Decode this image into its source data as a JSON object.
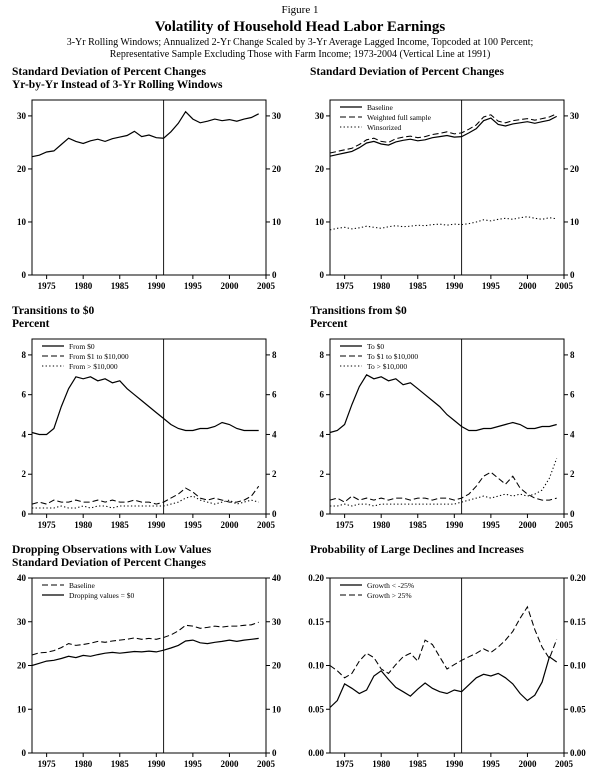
{
  "header": {
    "figure_label": "Figure 1",
    "title": "Volatility of Household Head Labor Earnings",
    "subtitle1": "3-Yr Rolling Windows; Annualized 2-Yr Change Scaled by 3-Yr Average Lagged Income, Topcoded at 100 Percent;",
    "subtitle2": "Representative Sample Excluding Those with Farm Income; 1973-2004 (Vertical Line at 1991)"
  },
  "chart_data": [
    {
      "type": "line",
      "title_lines": [
        "Standard Deviation of Percent Changes",
        "Yr-by-Yr Instead of 3-Yr Rolling Windows"
      ],
      "x": [
        1973,
        1974,
        1975,
        1976,
        1977,
        1978,
        1979,
        1980,
        1981,
        1982,
        1983,
        1984,
        1985,
        1986,
        1987,
        1988,
        1989,
        1990,
        1991,
        1992,
        1993,
        1994,
        1995,
        1996,
        1997,
        1998,
        1999,
        2000,
        2001,
        2002,
        2003,
        2004
      ],
      "xlim": [
        1973,
        2005
      ],
      "ylim": [
        0,
        33
      ],
      "xticks": [
        1975,
        1980,
        1985,
        1990,
        1995,
        2000,
        2005
      ],
      "ytick_values": [
        0,
        10,
        20,
        30
      ],
      "ytick_labels": [
        "0",
        "10",
        "20",
        "30"
      ],
      "vline": 1991,
      "series": [
        {
          "name": "",
          "style": "solid",
          "values": [
            22.3,
            22.6,
            23.2,
            23.4,
            24.6,
            25.8,
            25.2,
            24.8,
            25.3,
            25.6,
            25.2,
            25.7,
            26.0,
            26.3,
            27.1,
            26.1,
            26.4,
            25.9,
            25.8,
            27.0,
            28.6,
            30.8,
            29.4,
            28.7,
            29.0,
            29.4,
            29.1,
            29.3,
            29.0,
            29.4,
            29.7,
            30.4
          ]
        }
      ]
    },
    {
      "type": "line",
      "title_lines": [
        "Standard Deviation of Percent Changes"
      ],
      "x": [
        1973,
        1974,
        1975,
        1976,
        1977,
        1978,
        1979,
        1980,
        1981,
        1982,
        1983,
        1984,
        1985,
        1986,
        1987,
        1988,
        1989,
        1990,
        1991,
        1992,
        1993,
        1994,
        1995,
        1996,
        1997,
        1998,
        1999,
        2000,
        2001,
        2002,
        2003,
        2004
      ],
      "xlim": [
        1973,
        2005
      ],
      "ylim": [
        0,
        33
      ],
      "xticks": [
        1975,
        1980,
        1985,
        1990,
        1995,
        2000,
        2005
      ],
      "ytick_values": [
        0,
        10,
        20,
        30
      ],
      "ytick_labels": [
        "0",
        "10",
        "20",
        "30"
      ],
      "vline": 1991,
      "series": [
        {
          "name": "Baseline",
          "style": "solid",
          "values": [
            22.4,
            22.7,
            23.0,
            23.3,
            24.0,
            24.9,
            25.2,
            24.7,
            24.5,
            25.1,
            25.4,
            25.6,
            25.3,
            25.5,
            25.9,
            26.1,
            26.3,
            26.0,
            26.1,
            26.8,
            27.6,
            29.1,
            29.6,
            28.4,
            28.1,
            28.5,
            28.7,
            28.9,
            28.6,
            28.9,
            29.2,
            29.9
          ]
        },
        {
          "name": "Weighted full sample",
          "style": "dashed",
          "values": [
            23.0,
            23.3,
            23.6,
            23.9,
            24.6,
            25.5,
            25.8,
            25.2,
            25.0,
            25.7,
            26.0,
            26.2,
            25.9,
            26.1,
            26.5,
            26.7,
            27.0,
            26.6,
            26.8,
            27.5,
            28.3,
            29.8,
            30.2,
            29.0,
            28.7,
            29.1,
            29.3,
            29.5,
            29.2,
            29.5,
            29.8,
            30.4
          ]
        },
        {
          "name": "Winsorized",
          "style": "dotted",
          "values": [
            8.5,
            8.8,
            9.0,
            8.7,
            8.9,
            9.2,
            9.0,
            8.8,
            9.1,
            9.3,
            9.1,
            9.2,
            9.4,
            9.3,
            9.5,
            9.6,
            9.4,
            9.6,
            9.5,
            9.7,
            10.0,
            10.4,
            10.2,
            10.5,
            10.7,
            10.5,
            10.8,
            11.0,
            10.7,
            10.5,
            10.8,
            10.6
          ]
        }
      ]
    },
    {
      "type": "line",
      "title_lines": [
        "Transitions to $0",
        "Percent"
      ],
      "x": [
        1973,
        1974,
        1975,
        1976,
        1977,
        1978,
        1979,
        1980,
        1981,
        1982,
        1983,
        1984,
        1985,
        1986,
        1987,
        1988,
        1989,
        1990,
        1991,
        1992,
        1993,
        1994,
        1995,
        1996,
        1997,
        1998,
        1999,
        2000,
        2001,
        2002,
        2003,
        2004
      ],
      "xlim": [
        1973,
        2005
      ],
      "ylim": [
        0,
        8.8
      ],
      "xticks": [
        1975,
        1980,
        1985,
        1990,
        1995,
        2000,
        2005
      ],
      "ytick_values": [
        0,
        2,
        4,
        6,
        8
      ],
      "ytick_labels": [
        "0",
        "2",
        "4",
        "6",
        "8"
      ],
      "vline": 1991,
      "series": [
        {
          "name": "From $0",
          "style": "solid",
          "values": [
            4.1,
            4.0,
            4.0,
            4.3,
            5.4,
            6.3,
            6.9,
            6.8,
            6.9,
            6.7,
            6.8,
            6.6,
            6.7,
            6.3,
            6.0,
            5.7,
            5.4,
            5.1,
            4.8,
            4.5,
            4.3,
            4.2,
            4.2,
            4.3,
            4.3,
            4.4,
            4.6,
            4.5,
            4.3,
            4.2,
            4.2,
            4.2
          ]
        },
        {
          "name": "From $1 to $10,000",
          "style": "dashed",
          "values": [
            0.5,
            0.6,
            0.5,
            0.7,
            0.6,
            0.6,
            0.7,
            0.6,
            0.6,
            0.7,
            0.6,
            0.7,
            0.6,
            0.6,
            0.7,
            0.6,
            0.6,
            0.5,
            0.6,
            0.8,
            1.0,
            1.3,
            1.1,
            0.8,
            0.7,
            0.8,
            0.7,
            0.6,
            0.6,
            0.7,
            0.9,
            1.4
          ]
        },
        {
          "name": "From > $10,000",
          "style": "dotted",
          "values": [
            0.3,
            0.3,
            0.3,
            0.3,
            0.4,
            0.3,
            0.3,
            0.4,
            0.3,
            0.4,
            0.4,
            0.3,
            0.4,
            0.4,
            0.4,
            0.4,
            0.4,
            0.4,
            0.4,
            0.5,
            0.6,
            0.8,
            0.9,
            0.7,
            0.6,
            0.5,
            0.6,
            0.7,
            0.5,
            0.6,
            0.7,
            0.6
          ]
        }
      ]
    },
    {
      "type": "line",
      "title_lines": [
        "Transitions from $0",
        "Percent"
      ],
      "x": [
        1973,
        1974,
        1975,
        1976,
        1977,
        1978,
        1979,
        1980,
        1981,
        1982,
        1983,
        1984,
        1985,
        1986,
        1987,
        1988,
        1989,
        1990,
        1991,
        1992,
        1993,
        1994,
        1995,
        1996,
        1997,
        1998,
        1999,
        2000,
        2001,
        2002,
        2003,
        2004
      ],
      "xlim": [
        1973,
        2005
      ],
      "ylim": [
        0,
        8.8
      ],
      "xticks": [
        1975,
        1980,
        1985,
        1990,
        1995,
        2000,
        2005
      ],
      "ytick_values": [
        0,
        2,
        4,
        6,
        8
      ],
      "ytick_labels": [
        "0",
        "2",
        "4",
        "6",
        "8"
      ],
      "vline": 1991,
      "series": [
        {
          "name": "To $0",
          "style": "solid",
          "values": [
            4.1,
            4.2,
            4.5,
            5.5,
            6.4,
            7.0,
            6.8,
            6.9,
            6.7,
            6.8,
            6.5,
            6.6,
            6.3,
            6.0,
            5.7,
            5.4,
            5.0,
            4.7,
            4.4,
            4.2,
            4.2,
            4.3,
            4.3,
            4.4,
            4.5,
            4.6,
            4.5,
            4.3,
            4.3,
            4.4,
            4.4,
            4.5
          ]
        },
        {
          "name": "To $1 to $10,000",
          "style": "dashed",
          "values": [
            0.7,
            0.8,
            0.6,
            0.9,
            0.7,
            0.8,
            0.7,
            0.8,
            0.7,
            0.8,
            0.8,
            0.7,
            0.8,
            0.8,
            0.7,
            0.8,
            0.8,
            0.7,
            0.8,
            1.0,
            1.4,
            1.9,
            2.1,
            1.8,
            1.5,
            1.9,
            1.3,
            1.0,
            0.8,
            0.7,
            0.7,
            0.8
          ]
        },
        {
          "name": "To > $10,000",
          "style": "dotted",
          "values": [
            0.4,
            0.4,
            0.5,
            0.4,
            0.5,
            0.5,
            0.4,
            0.5,
            0.5,
            0.5,
            0.5,
            0.5,
            0.5,
            0.5,
            0.5,
            0.5,
            0.5,
            0.5,
            0.6,
            0.7,
            0.8,
            0.9,
            0.8,
            0.9,
            1.0,
            0.9,
            1.0,
            0.9,
            1.0,
            1.2,
            1.8,
            2.8
          ]
        }
      ]
    },
    {
      "type": "line",
      "title_lines": [
        "Dropping Observations with Low Values",
        "Standard Deviation of Percent Changes"
      ],
      "x": [
        1973,
        1974,
        1975,
        1976,
        1977,
        1978,
        1979,
        1980,
        1981,
        1982,
        1983,
        1984,
        1985,
        1986,
        1987,
        1988,
        1989,
        1990,
        1991,
        1992,
        1993,
        1994,
        1995,
        1996,
        1997,
        1998,
        1999,
        2000,
        2001,
        2002,
        2003,
        2004
      ],
      "xlim": [
        1973,
        2005
      ],
      "ylim": [
        0,
        40
      ],
      "xticks": [
        1975,
        1980,
        1985,
        1990,
        1995,
        2000,
        2005
      ],
      "ytick_values": [
        0,
        10,
        20,
        30,
        40
      ],
      "ytick_labels": [
        "0",
        "10",
        "20",
        "30",
        "40"
      ],
      "vline": 1991,
      "series": [
        {
          "name": "Baseline",
          "style": "dashed",
          "values": [
            22.4,
            22.9,
            23.0,
            23.4,
            24.1,
            25.0,
            24.6,
            24.8,
            25.1,
            25.5,
            25.3,
            25.6,
            25.8,
            26.0,
            26.3,
            26.0,
            26.2,
            26.0,
            26.4,
            27.0,
            27.9,
            29.2,
            29.0,
            28.5,
            28.7,
            29.0,
            28.8,
            29.0,
            29.0,
            29.2,
            29.3,
            29.9
          ]
        },
        {
          "name": "Dropping values = $0",
          "style": "solid",
          "values": [
            20.0,
            20.5,
            21.0,
            21.2,
            21.6,
            22.1,
            21.8,
            22.3,
            22.1,
            22.5,
            22.8,
            23.0,
            22.8,
            23.0,
            23.2,
            23.1,
            23.3,
            23.1,
            23.5,
            24.0,
            24.6,
            25.6,
            25.8,
            25.2,
            25.0,
            25.3,
            25.5,
            25.8,
            25.5,
            25.8,
            26.0,
            26.2
          ]
        }
      ]
    },
    {
      "type": "line",
      "title_lines": [
        "Probability of Large Declines and Increases"
      ],
      "x": [
        1973,
        1974,
        1975,
        1976,
        1977,
        1978,
        1979,
        1980,
        1981,
        1982,
        1983,
        1984,
        1985,
        1986,
        1987,
        1988,
        1989,
        1990,
        1991,
        1992,
        1993,
        1994,
        1995,
        1996,
        1997,
        1998,
        1999,
        2000,
        2001,
        2002,
        2003,
        2004
      ],
      "xlim": [
        1973,
        2005
      ],
      "ylim": [
        0,
        0.2
      ],
      "xticks": [
        1975,
        1980,
        1985,
        1990,
        1995,
        2000,
        2005
      ],
      "ytick_values": [
        0,
        0.05,
        0.1,
        0.15,
        0.2
      ],
      "ytick_labels": [
        "0.00",
        "0.05",
        "0.10",
        "0.15",
        "0.20"
      ],
      "vline": 1991,
      "series": [
        {
          "name": "Growth < -25%",
          "style": "solid",
          "values": [
            0.052,
            0.06,
            0.079,
            0.074,
            0.068,
            0.072,
            0.088,
            0.094,
            0.084,
            0.075,
            0.07,
            0.065,
            0.073,
            0.08,
            0.074,
            0.07,
            0.068,
            0.072,
            0.07,
            0.078,
            0.086,
            0.09,
            0.088,
            0.091,
            0.086,
            0.079,
            0.068,
            0.06,
            0.066,
            0.081,
            0.11,
            0.104
          ]
        },
        {
          "name": "Growth > 25%",
          "style": "dashed",
          "values": [
            0.1,
            0.094,
            0.086,
            0.091,
            0.105,
            0.114,
            0.109,
            0.096,
            0.091,
            0.101,
            0.11,
            0.114,
            0.105,
            0.129,
            0.124,
            0.11,
            0.096,
            0.101,
            0.106,
            0.11,
            0.114,
            0.119,
            0.115,
            0.121,
            0.129,
            0.139,
            0.154,
            0.167,
            0.141,
            0.121,
            0.108,
            0.13
          ]
        }
      ]
    }
  ]
}
